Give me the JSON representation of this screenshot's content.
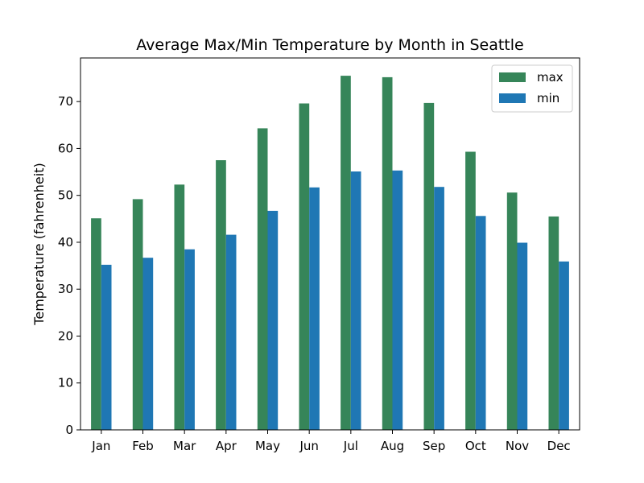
{
  "chart_data": {
    "type": "bar",
    "title": "Average Max/Min Temperature by Month in Seattle",
    "xlabel": "",
    "ylabel": "Temperature (fahrenheit)",
    "categories": [
      "Jan",
      "Feb",
      "Mar",
      "Apr",
      "May",
      "Jun",
      "Jul",
      "Aug",
      "Sep",
      "Oct",
      "Nov",
      "Dec"
    ],
    "series": [
      {
        "name": "max",
        "color": "#368559",
        "values": [
          45.1,
          49.2,
          52.3,
          57.5,
          64.3,
          69.6,
          75.5,
          75.2,
          69.7,
          59.3,
          50.6,
          45.5
        ]
      },
      {
        "name": "min",
        "color": "#1f77b4",
        "values": [
          35.2,
          36.7,
          38.5,
          41.6,
          46.7,
          51.7,
          55.1,
          55.3,
          51.8,
          45.6,
          39.9,
          35.9
        ]
      }
    ],
    "ylim": [
      0,
      79.3
    ],
    "yticks": [
      0,
      10,
      20,
      30,
      40,
      50,
      60,
      70
    ],
    "grid": false,
    "legend_position": "top-right"
  }
}
